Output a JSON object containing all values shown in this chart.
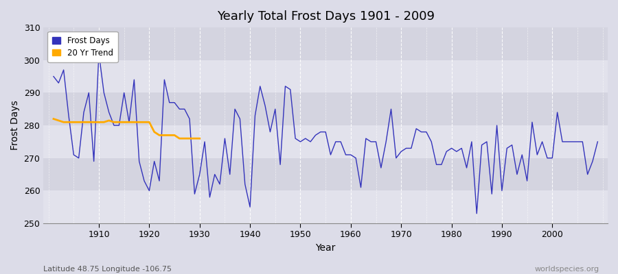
{
  "title": "Yearly Total Frost Days 1901 - 2009",
  "xlabel": "Year",
  "ylabel": "Frost Days",
  "footer_left": "Latitude 48.75 Longitude -106.75",
  "footer_right": "worldspecies.org",
  "ylim": [
    250,
    310
  ],
  "yticks": [
    250,
    260,
    270,
    280,
    290,
    300,
    310
  ],
  "xlim": [
    1899,
    2011
  ],
  "xticks": [
    1910,
    1920,
    1930,
    1940,
    1950,
    1960,
    1970,
    1980,
    1990,
    2000
  ],
  "line_color": "#3333bb",
  "trend_color": "#ffaa00",
  "bg_color": "#dcdce8",
  "band_color_light": "#e8e8f2",
  "band_color_dark": "#d8d8e4",
  "years": [
    1901,
    1902,
    1903,
    1904,
    1905,
    1906,
    1907,
    1908,
    1909,
    1910,
    1911,
    1912,
    1913,
    1914,
    1915,
    1916,
    1917,
    1918,
    1919,
    1920,
    1921,
    1922,
    1923,
    1924,
    1925,
    1926,
    1927,
    1928,
    1929,
    1930,
    1931,
    1932,
    1933,
    1934,
    1935,
    1936,
    1937,
    1938,
    1939,
    1940,
    1941,
    1942,
    1943,
    1944,
    1945,
    1946,
    1947,
    1948,
    1949,
    1950,
    1951,
    1952,
    1953,
    1954,
    1955,
    1956,
    1957,
    1958,
    1959,
    1960,
    1961,
    1962,
    1963,
    1964,
    1965,
    1966,
    1967,
    1968,
    1969,
    1970,
    1971,
    1972,
    1973,
    1974,
    1975,
    1976,
    1977,
    1978,
    1979,
    1980,
    1981,
    1982,
    1983,
    1984,
    1985,
    1986,
    1987,
    1988,
    1989,
    1990,
    1991,
    1992,
    1993,
    1994,
    1995,
    1996,
    1997,
    1998,
    1999,
    2000,
    2001,
    2002,
    2003,
    2004,
    2005,
    2006,
    2007,
    2008,
    2009
  ],
  "values": [
    295,
    293,
    297,
    283,
    271,
    270,
    284,
    290,
    269,
    302,
    290,
    284,
    280,
    280,
    290,
    281,
    294,
    269,
    263,
    260,
    269,
    263,
    294,
    287,
    287,
    285,
    285,
    282,
    259,
    265,
    275,
    258,
    265,
    262,
    276,
    265,
    285,
    282,
    262,
    255,
    283,
    292,
    286,
    278,
    285,
    268,
    292,
    291,
    276,
    275,
    276,
    275,
    277,
    278,
    278,
    271,
    275,
    275,
    271,
    271,
    270,
    261,
    276,
    275,
    275,
    267,
    275,
    285,
    270,
    272,
    273,
    273,
    279,
    278,
    278,
    275,
    268,
    268,
    272,
    273,
    272,
    273,
    267,
    275,
    253,
    274,
    275,
    259,
    280,
    260,
    273,
    274,
    265,
    271,
    263,
    281,
    271,
    275,
    270,
    270,
    284,
    275,
    275,
    275,
    275,
    275,
    265,
    269,
    275
  ],
  "trend_years": [
    1901,
    1902,
    1903,
    1904,
    1905,
    1906,
    1907,
    1908,
    1909,
    1910,
    1911,
    1912,
    1913,
    1914,
    1915,
    1916,
    1917,
    1918,
    1919,
    1920,
    1921,
    1922,
    1923,
    1924,
    1925,
    1926,
    1927,
    1928,
    1929,
    1930
  ],
  "trend_values": [
    282,
    281.5,
    281,
    281,
    281,
    281,
    281,
    281,
    281,
    281,
    281,
    281.5,
    281,
    281,
    281,
    281,
    281,
    281,
    281,
    281,
    278,
    277,
    277,
    277,
    277,
    276,
    276,
    276,
    276,
    276
  ]
}
